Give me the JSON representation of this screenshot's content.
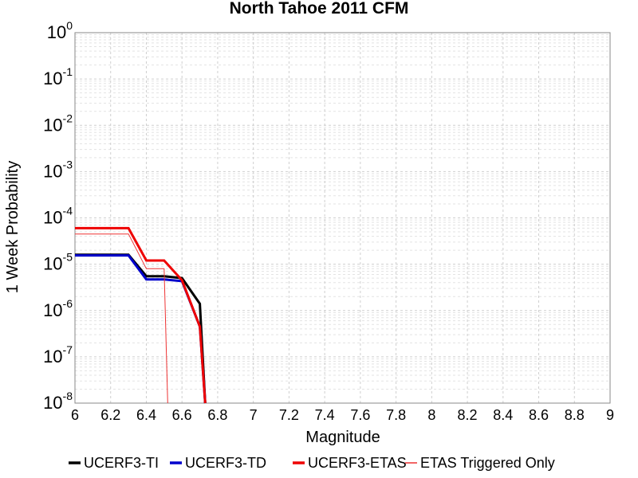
{
  "chart_data": {
    "type": "line",
    "title": "North Tahoe 2011 CFM",
    "xlabel": "Magnitude",
    "ylabel": "1 Week Probability",
    "xlim": [
      6,
      9
    ],
    "ylim": [
      1e-08,
      1
    ],
    "yscale": "log",
    "grid": true,
    "legend_position": "bottom",
    "x_ticks": [
      "6",
      "6.2",
      "6.4",
      "6.6",
      "6.8",
      "7",
      "7.2",
      "7.4",
      "7.6",
      "7.8",
      "8",
      "8.2",
      "8.4",
      "8.6",
      "8.8",
      "9"
    ],
    "y_ticks": [
      {
        "base": "10",
        "exp": "0"
      },
      {
        "base": "10",
        "exp": "-1"
      },
      {
        "base": "10",
        "exp": "-2"
      },
      {
        "base": "10",
        "exp": "-3"
      },
      {
        "base": "10",
        "exp": "-4"
      },
      {
        "base": "10",
        "exp": "-5"
      },
      {
        "base": "10",
        "exp": "-6"
      },
      {
        "base": "10",
        "exp": "-7"
      },
      {
        "base": "10",
        "exp": "-8"
      }
    ],
    "series": [
      {
        "name": "UCERF3-TI",
        "color": "#000000",
        "width": 3,
        "x": [
          6.0,
          6.3,
          6.4,
          6.5,
          6.6,
          6.7,
          6.73
        ],
        "y": [
          1.6e-05,
          1.6e-05,
          5.5e-06,
          5.5e-06,
          5e-06,
          1.4e-06,
          1e-08
        ]
      },
      {
        "name": "UCERF3-TD",
        "color": "#0000cc",
        "width": 3,
        "x": [
          6.0,
          6.3,
          6.4,
          6.5,
          6.6,
          6.7,
          6.73
        ],
        "y": [
          1.55e-05,
          1.55e-05,
          4.7e-06,
          4.7e-06,
          4.3e-06,
          4.5e-07,
          1e-08
        ]
      },
      {
        "name": "UCERF3-ETAS",
        "color": "#ee0000",
        "width": 3,
        "x": [
          6.0,
          6.3,
          6.4,
          6.5,
          6.6,
          6.7,
          6.73
        ],
        "y": [
          6e-05,
          6e-05,
          1.2e-05,
          1.2e-05,
          4.5e-06,
          4.5e-07,
          1e-08
        ]
      },
      {
        "name": "ETAS Triggered Only",
        "color": "#ee3333",
        "width": 1,
        "x": [
          6.0,
          6.3,
          6.4,
          6.5,
          6.52
        ],
        "y": [
          4.5e-05,
          4.5e-05,
          8e-06,
          8e-06,
          1e-08
        ]
      }
    ]
  }
}
